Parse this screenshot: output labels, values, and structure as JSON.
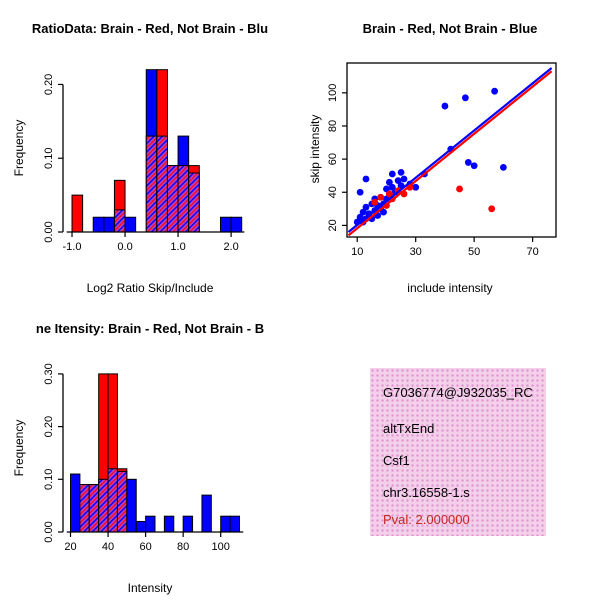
{
  "figure": {
    "background": "#FFFFFF"
  },
  "chart_data": [
    {
      "id": "hist-log2ratio",
      "type": "bar",
      "title": "RatioData: Brain - Red, Not Brain - Blu",
      "xlabel": "Log2 Ratio Skip/Include",
      "ylabel": "Frequency",
      "xlim": [
        -1.17,
        2.3
      ],
      "ylim": [
        0,
        0.225
      ],
      "xticks": [
        -1.0,
        0.0,
        1.0,
        2.0
      ],
      "xtick_labels": [
        "-1.0",
        "0.0",
        "1.0",
        "2.0"
      ],
      "yticks": [
        0,
        0.1,
        0.2
      ],
      "ytick_labels": [
        "0.00",
        "0.10",
        "0.20"
      ],
      "axis_span": [
        -1.1,
        2.25
      ],
      "bins_start": -1.0,
      "bin_width": 0.2,
      "overlap_color": "#BB3FBB",
      "grid": false,
      "series": [
        {
          "name": "Brain",
          "color": "#FF0000",
          "values": [
            0.05,
            0,
            0,
            0,
            0.07,
            0,
            0,
            0.13,
            0.22,
            0.09,
            0.09,
            0.09,
            0,
            0,
            0,
            0
          ]
        },
        {
          "name": "Not Brain",
          "color": "#0000FF",
          "values": [
            0,
            0,
            0.02,
            0.02,
            0.03,
            0.02,
            0,
            0.22,
            0.13,
            0.09,
            0.13,
            0.08,
            0,
            0,
            0.02,
            0.02
          ]
        }
      ]
    },
    {
      "id": "scatter-intensity",
      "type": "scatter",
      "title": "Brain - Red, Not Brain - Blue",
      "xlabel": "include intensity",
      "ylabel": "skip intensity",
      "xlim": [
        6.5,
        78
      ],
      "ylim": [
        13,
        118
      ],
      "xticks": [
        10,
        30,
        50,
        70
      ],
      "xtick_labels": [
        "10",
        "30",
        "50",
        "70"
      ],
      "yticks": [
        20,
        40,
        60,
        80,
        100
      ],
      "ytick_labels": [
        "20",
        "40",
        "60",
        "80",
        "100"
      ],
      "grid": false,
      "series": [
        {
          "name": "Brain",
          "color": "#FF0000",
          "points": [
            [
              16,
              34
            ],
            [
              18,
              37
            ],
            [
              20,
              32
            ],
            [
              21,
              39
            ],
            [
              22,
              36
            ],
            [
              24,
              41
            ],
            [
              26,
              39
            ],
            [
              28,
              43
            ],
            [
              45,
              42
            ],
            [
              56,
              30
            ]
          ]
        },
        {
          "name": "Not Brain",
          "color": "#0000FF",
          "points": [
            [
              10,
              22
            ],
            [
              11,
              25
            ],
            [
              11,
              40
            ],
            [
              12,
              22
            ],
            [
              12,
              28
            ],
            [
              13,
              24
            ],
            [
              13,
              31
            ],
            [
              13,
              48
            ],
            [
              14,
              27
            ],
            [
              15,
              24
            ],
            [
              15,
              33
            ],
            [
              16,
              29
            ],
            [
              16,
              36
            ],
            [
              17,
              26
            ],
            [
              17,
              32
            ],
            [
              18,
              30
            ],
            [
              18,
              37
            ],
            [
              19,
              28
            ],
            [
              19,
              33
            ],
            [
              20,
              36
            ],
            [
              20,
              42
            ],
            [
              21,
              39
            ],
            [
              21,
              46
            ],
            [
              22,
              43
            ],
            [
              22,
              51
            ],
            [
              23,
              40
            ],
            [
              24,
              47
            ],
            [
              25,
              44
            ],
            [
              25,
              52
            ],
            [
              26,
              48
            ],
            [
              28,
              45
            ],
            [
              30,
              43
            ],
            [
              33,
              51
            ],
            [
              40,
              92
            ],
            [
              42,
              66
            ],
            [
              47,
              97
            ],
            [
              48,
              58
            ],
            [
              50,
              56
            ],
            [
              57,
              101
            ],
            [
              60,
              55
            ]
          ]
        }
      ],
      "lines": [
        {
          "name": "brain-fit-line",
          "color": "#FF0000",
          "from": [
            7,
            14
          ],
          "to": [
            76.5,
            113
          ]
        },
        {
          "name": "notbrain-fit-line",
          "color": "#0000FF",
          "from": [
            7,
            16
          ],
          "to": [
            76.5,
            115
          ]
        }
      ]
    },
    {
      "id": "hist-intensity",
      "type": "bar",
      "title": "ne Itensity: Brain - Red, Not Brain - B",
      "xlabel": "Intensity",
      "ylabel": "Frequency",
      "xlim": [
        16,
        114
      ],
      "ylim": [
        0,
        0.315
      ],
      "xticks": [
        20,
        40,
        60,
        80,
        100
      ],
      "xtick_labels": [
        "20",
        "40",
        "60",
        "80",
        "100"
      ],
      "yticks": [
        0,
        0.1,
        0.2,
        0.3
      ],
      "ytick_labels": [
        "0.00",
        "0.10",
        "0.20",
        "0.30"
      ],
      "axis_span": [
        18,
        112
      ],
      "bins_start": 20,
      "bin_width": 5,
      "overlap_color": "#BB3FBB",
      "grid": false,
      "series": [
        {
          "name": "Brain",
          "color": "#FF0000",
          "values": [
            0,
            0.09,
            0.09,
            0.3,
            0.3,
            0.12,
            0,
            0,
            0,
            0,
            0,
            0,
            0,
            0,
            0,
            0,
            0,
            0
          ]
        },
        {
          "name": "Not Brain",
          "color": "#0000FF",
          "values": [
            0.11,
            0.09,
            0.09,
            0.1,
            0.12,
            0.115,
            0.1,
            0.02,
            0.03,
            0,
            0.03,
            0,
            0.03,
            0,
            0.07,
            0,
            0.03,
            0.03
          ]
        }
      ]
    }
  ],
  "info_box": {
    "background": "#F3CFE9",
    "dot_color": "#DF8FD0",
    "lines": [
      {
        "text": "G7036774@J932035_RC",
        "color": "#000000"
      },
      {
        "text": "altTxEnd",
        "color": "#000000"
      },
      {
        "text": "Csf1",
        "color": "#000000"
      },
      {
        "text": "chr3.16558-1.s",
        "color": "#000000"
      },
      {
        "text": "Pval: 2.000000",
        "color": "#C2271E"
      }
    ]
  }
}
